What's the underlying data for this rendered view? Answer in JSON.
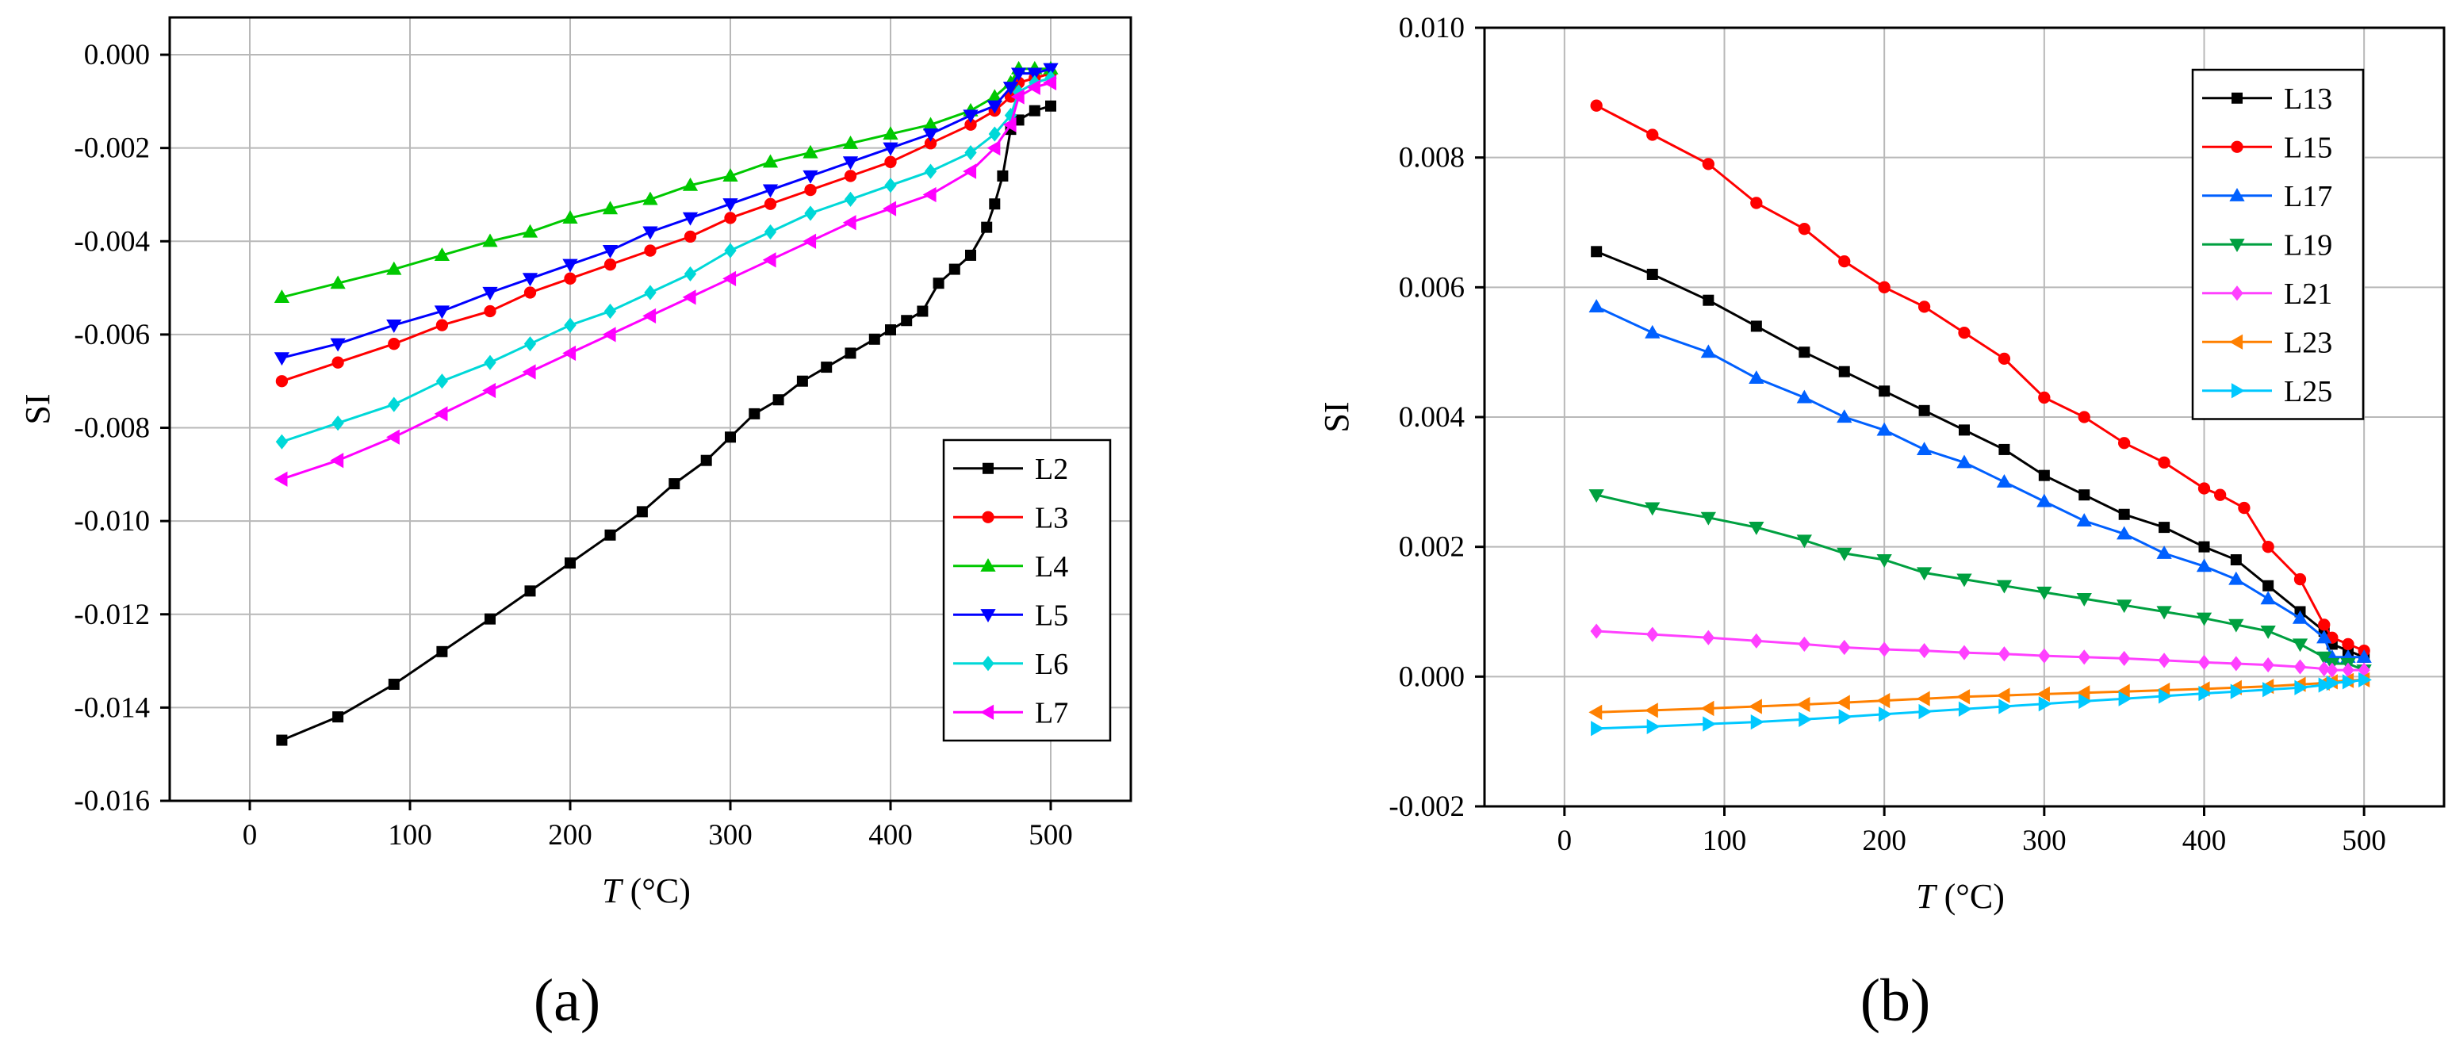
{
  "figure_labels": [
    "(a)",
    "(b)"
  ],
  "chart_data": [
    {
      "type": "line",
      "panel_label": "(a)",
      "xlabel_var": "T",
      "xlabel_unit": " (°C)",
      "ylabel": "SI",
      "xlim": [
        -50,
        550
      ],
      "ylim": [
        -0.016,
        0.0008
      ],
      "xticks": [
        0,
        100,
        200,
        300,
        400,
        500
      ],
      "xtick_labels": [
        "0",
        "100",
        "200",
        "300",
        "400",
        "500"
      ],
      "yticks": [
        -0.016,
        -0.014,
        -0.012,
        -0.01,
        -0.008,
        -0.006,
        -0.004,
        -0.002,
        0.0
      ],
      "ytick_labels": [
        "-0.016",
        "-0.014",
        "-0.012",
        "-0.010",
        "-0.008",
        "-0.006",
        "-0.004",
        "-0.002",
        "0.000"
      ],
      "grid": true,
      "legend_position": "bottom-right",
      "series": [
        {
          "name": "L2",
          "color": "#000000",
          "marker": "square",
          "x": [
            20,
            55,
            90,
            120,
            150,
            175,
            200,
            225,
            245,
            265,
            285,
            300,
            315,
            330,
            345,
            360,
            375,
            390,
            400,
            410,
            420,
            430,
            440,
            450,
            460,
            465,
            470,
            475,
            480,
            490,
            500
          ],
          "y": [
            -0.0147,
            -0.0142,
            -0.0135,
            -0.0128,
            -0.0121,
            -0.0115,
            -0.0109,
            -0.0103,
            -0.0098,
            -0.0092,
            -0.0087,
            -0.0082,
            -0.0077,
            -0.0074,
            -0.007,
            -0.0067,
            -0.0064,
            -0.0061,
            -0.0059,
            -0.0057,
            -0.0055,
            -0.0049,
            -0.0046,
            -0.0043,
            -0.0037,
            -0.0032,
            -0.0026,
            -0.0016,
            -0.0014,
            -0.0012,
            -0.0011
          ]
        },
        {
          "name": "L3",
          "color": "#ff0000",
          "marker": "circle",
          "x": [
            20,
            55,
            90,
            120,
            150,
            175,
            200,
            225,
            250,
            275,
            300,
            325,
            350,
            375,
            400,
            425,
            450,
            465,
            475,
            480,
            490,
            500
          ],
          "y": [
            -0.007,
            -0.0066,
            -0.0062,
            -0.0058,
            -0.0055,
            -0.0051,
            -0.0048,
            -0.0045,
            -0.0042,
            -0.0039,
            -0.0035,
            -0.0032,
            -0.0029,
            -0.0026,
            -0.0023,
            -0.0019,
            -0.0015,
            -0.0012,
            -0.0009,
            -0.0006,
            -0.0005,
            -0.0004
          ]
        },
        {
          "name": "L4",
          "color": "#00c800",
          "marker": "triangle-up",
          "x": [
            20,
            55,
            90,
            120,
            150,
            175,
            200,
            225,
            250,
            275,
            300,
            325,
            350,
            375,
            400,
            425,
            450,
            465,
            475,
            480,
            490,
            500
          ],
          "y": [
            -0.0052,
            -0.0049,
            -0.0046,
            -0.0043,
            -0.004,
            -0.0038,
            -0.0035,
            -0.0033,
            -0.0031,
            -0.0028,
            -0.0026,
            -0.0023,
            -0.0021,
            -0.0019,
            -0.0017,
            -0.0015,
            -0.0012,
            -0.0009,
            -0.0006,
            -0.0003,
            -0.0003,
            -0.0003
          ]
        },
        {
          "name": "L5",
          "color": "#0000ff",
          "marker": "triangle-down",
          "x": [
            20,
            55,
            90,
            120,
            150,
            175,
            200,
            225,
            250,
            275,
            300,
            325,
            350,
            375,
            400,
            425,
            450,
            465,
            475,
            480,
            490,
            500
          ],
          "y": [
            -0.0065,
            -0.0062,
            -0.0058,
            -0.0055,
            -0.0051,
            -0.0048,
            -0.0045,
            -0.0042,
            -0.0038,
            -0.0035,
            -0.0032,
            -0.0029,
            -0.0026,
            -0.0023,
            -0.002,
            -0.0017,
            -0.0013,
            -0.0011,
            -0.0007,
            -0.0004,
            -0.0004,
            -0.0003
          ]
        },
        {
          "name": "L6",
          "color": "#00d8d8",
          "marker": "diamond",
          "x": [
            20,
            55,
            90,
            120,
            150,
            175,
            200,
            225,
            250,
            275,
            300,
            325,
            350,
            375,
            400,
            425,
            450,
            465,
            475,
            480,
            490,
            500
          ],
          "y": [
            -0.0083,
            -0.0079,
            -0.0075,
            -0.007,
            -0.0066,
            -0.0062,
            -0.0058,
            -0.0055,
            -0.0051,
            -0.0047,
            -0.0042,
            -0.0038,
            -0.0034,
            -0.0031,
            -0.0028,
            -0.0025,
            -0.0021,
            -0.0017,
            -0.0013,
            -0.0008,
            -0.0006,
            -0.0005
          ]
        },
        {
          "name": "L7",
          "color": "#ff00ff",
          "marker": "triangle-left",
          "x": [
            20,
            55,
            90,
            120,
            150,
            175,
            200,
            225,
            250,
            275,
            300,
            325,
            350,
            375,
            400,
            425,
            450,
            465,
            475,
            480,
            490,
            500
          ],
          "y": [
            -0.0091,
            -0.0087,
            -0.0082,
            -0.0077,
            -0.0072,
            -0.0068,
            -0.0064,
            -0.006,
            -0.0056,
            -0.0052,
            -0.0048,
            -0.0044,
            -0.004,
            -0.0036,
            -0.0033,
            -0.003,
            -0.0025,
            -0.002,
            -0.0015,
            -0.0009,
            -0.0007,
            -0.0006
          ]
        }
      ]
    },
    {
      "type": "line",
      "panel_label": "(b)",
      "xlabel_var": "T",
      "xlabel_unit": " (°C)",
      "ylabel": "SI",
      "xlim": [
        -50,
        550
      ],
      "ylim": [
        -0.002,
        0.01
      ],
      "xticks": [
        0,
        100,
        200,
        300,
        400,
        500
      ],
      "xtick_labels": [
        "0",
        "100",
        "200",
        "300",
        "400",
        "500"
      ],
      "yticks": [
        -0.002,
        0.0,
        0.002,
        0.004,
        0.006,
        0.008,
        0.01
      ],
      "ytick_labels": [
        "-0.002",
        "0.000",
        "0.002",
        "0.004",
        "0.006",
        "0.008",
        "0.010"
      ],
      "grid": true,
      "legend_position": "top-right",
      "series": [
        {
          "name": "L13",
          "color": "#000000",
          "marker": "square",
          "x": [
            20,
            55,
            90,
            120,
            150,
            175,
            200,
            225,
            250,
            275,
            300,
            325,
            350,
            375,
            400,
            420,
            440,
            460,
            475,
            480,
            490,
            500
          ],
          "y": [
            0.00655,
            0.0062,
            0.0058,
            0.0054,
            0.005,
            0.0047,
            0.0044,
            0.0041,
            0.0038,
            0.0035,
            0.0031,
            0.0028,
            0.0025,
            0.0023,
            0.002,
            0.0018,
            0.0014,
            0.001,
            0.0007,
            0.0005,
            0.0004,
            0.0003
          ]
        },
        {
          "name": "L15",
          "color": "#ff0000",
          "marker": "circle",
          "x": [
            20,
            55,
            90,
            120,
            150,
            175,
            200,
            225,
            250,
            275,
            300,
            325,
            350,
            375,
            400,
            410,
            425,
            440,
            460,
            475,
            480,
            490,
            500
          ],
          "y": [
            0.0088,
            0.00835,
            0.0079,
            0.0073,
            0.0069,
            0.0064,
            0.006,
            0.0057,
            0.0053,
            0.0049,
            0.0043,
            0.004,
            0.0036,
            0.0033,
            0.0029,
            0.0028,
            0.0026,
            0.002,
            0.0015,
            0.0008,
            0.0006,
            0.0005,
            0.0004
          ]
        },
        {
          "name": "L17",
          "color": "#0060ff",
          "marker": "triangle-up",
          "x": [
            20,
            55,
            90,
            120,
            150,
            175,
            200,
            225,
            250,
            275,
            300,
            325,
            350,
            375,
            400,
            420,
            440,
            460,
            475,
            480,
            490,
            500
          ],
          "y": [
            0.0057,
            0.0053,
            0.005,
            0.0046,
            0.0043,
            0.004,
            0.0038,
            0.0035,
            0.0033,
            0.003,
            0.0027,
            0.0024,
            0.0022,
            0.0019,
            0.0017,
            0.0015,
            0.0012,
            0.0009,
            0.0006,
            0.0003,
            0.0003,
            0.0003
          ]
        },
        {
          "name": "L19",
          "color": "#00a040",
          "marker": "triangle-down",
          "x": [
            20,
            55,
            90,
            120,
            150,
            175,
            200,
            225,
            250,
            275,
            300,
            325,
            350,
            375,
            400,
            420,
            440,
            460,
            475,
            480,
            490,
            500
          ],
          "y": [
            0.0028,
            0.0026,
            0.00245,
            0.0023,
            0.0021,
            0.0019,
            0.0018,
            0.0016,
            0.0015,
            0.0014,
            0.0013,
            0.0012,
            0.0011,
            0.001,
            0.0009,
            0.0008,
            0.0007,
            0.0005,
            0.0003,
            0.0002,
            0.0002,
            0.0001
          ]
        },
        {
          "name": "L21",
          "color": "#ff40ff",
          "marker": "diamond",
          "x": [
            20,
            55,
            90,
            120,
            150,
            175,
            200,
            225,
            250,
            275,
            300,
            325,
            350,
            375,
            400,
            420,
            440,
            460,
            475,
            480,
            490,
            500
          ],
          "y": [
            0.0007,
            0.00065,
            0.0006,
            0.00055,
            0.0005,
            0.00045,
            0.00042,
            0.0004,
            0.00037,
            0.00035,
            0.00032,
            0.0003,
            0.00028,
            0.00025,
            0.00022,
            0.0002,
            0.00018,
            0.00015,
            0.00012,
            0.0001,
            0.0001,
            0.0001
          ]
        },
        {
          "name": "L23",
          "color": "#ff8000",
          "marker": "triangle-left",
          "x": [
            20,
            55,
            90,
            120,
            150,
            175,
            200,
            225,
            250,
            275,
            300,
            325,
            350,
            375,
            400,
            420,
            440,
            460,
            475,
            480,
            490,
            500
          ],
          "y": [
            -0.00055,
            -0.00052,
            -0.00049,
            -0.00046,
            -0.00043,
            -0.0004,
            -0.00037,
            -0.00034,
            -0.00031,
            -0.00029,
            -0.00027,
            -0.00025,
            -0.00023,
            -0.00021,
            -0.00019,
            -0.00017,
            -0.00015,
            -0.00012,
            -0.0001,
            -8e-05,
            -6e-05,
            -5e-05
          ]
        },
        {
          "name": "L25",
          "color": "#00c8ff",
          "marker": "triangle-right",
          "x": [
            20,
            55,
            90,
            120,
            150,
            175,
            200,
            225,
            250,
            275,
            300,
            325,
            350,
            375,
            400,
            420,
            440,
            460,
            475,
            480,
            490,
            500
          ],
          "y": [
            -0.0008,
            -0.00077,
            -0.00073,
            -0.0007,
            -0.00066,
            -0.00062,
            -0.00058,
            -0.00054,
            -0.0005,
            -0.00046,
            -0.00042,
            -0.00038,
            -0.00034,
            -0.0003,
            -0.00026,
            -0.00023,
            -0.0002,
            -0.00017,
            -0.00013,
            -0.0001,
            -8e-05,
            -5e-05
          ]
        }
      ]
    }
  ]
}
